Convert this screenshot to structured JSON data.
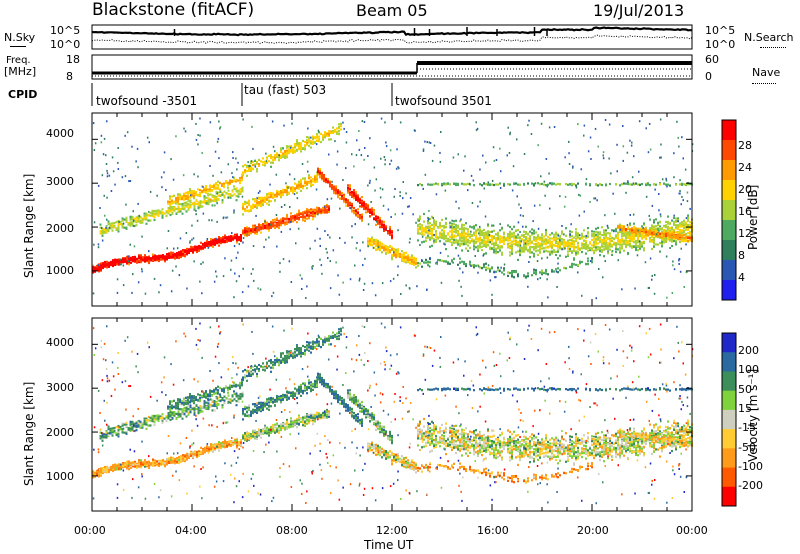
{
  "header": {
    "title": "Blackstone (fitACF)",
    "beam": "Beam 05",
    "date": "19/Jul/2013"
  },
  "panels": {
    "nsky_label": "N.Sky",
    "nsearch_label": "N.Search",
    "freq_label_1": "Freq.",
    "freq_label_2": "[MHz]",
    "nave_label": "Nave",
    "cpid_label": "CPID",
    "nsky_ticks": [
      "10^5",
      "10^0"
    ],
    "freq_ticks": [
      "18",
      "8"
    ],
    "nave_ticks": [
      "60",
      "0"
    ]
  },
  "cpid_segments": [
    {
      "label": "twofsound -3501",
      "start": 0,
      "end": 6
    },
    {
      "label": "tau (fast) 503",
      "start": 6,
      "end": 12
    },
    {
      "label": "twofsound 3501",
      "start": 12,
      "end": 24
    }
  ],
  "chart_data": [
    {
      "type": "heatmap",
      "quantity": "power",
      "ylabel": "Slant Range [km]",
      "xlabel": "Time UT",
      "xlim": [
        0,
        24
      ],
      "ylim": [
        200,
        4600
      ],
      "yticks": [
        "1000",
        "2000",
        "3000",
        "4000"
      ],
      "xticks": [
        "00:00",
        "04:00",
        "08:00",
        "12:00",
        "16:00",
        "20:00",
        "00:00"
      ],
      "colorbar": {
        "label": "Power [dB]",
        "ticks": [
          "28",
          "24",
          "20",
          "16",
          "12",
          "8",
          "4"
        ],
        "colors": [
          "#ff0000",
          "#ff4800",
          "#ff9a00",
          "#ffd100",
          "#aad238",
          "#4eaa60",
          "#2f7e5c",
          "#2a56b4",
          "#1f1ff0"
        ]
      }
    },
    {
      "type": "heatmap",
      "quantity": "velocity",
      "ylabel": "Slant Range [km]",
      "xlabel": "Time UT",
      "xlim": [
        0,
        24
      ],
      "ylim": [
        200,
        4600
      ],
      "yticks": [
        "1000",
        "2000",
        "3000",
        "4000"
      ],
      "xticks": [
        "00:00",
        "04:00",
        "08:00",
        "12:00",
        "16:00",
        "20:00",
        "00:00"
      ],
      "colorbar": {
        "label": "Velocity [m s⁻¹]",
        "ticks": [
          "200",
          "100",
          "50",
          "15",
          "-15",
          "-50",
          "-100",
          "-200"
        ],
        "colors": [
          "#1f28c8",
          "#2a6aa0",
          "#3c8e5a",
          "#7fd23c",
          "#cfcfc0",
          "#ffcc33",
          "#ff9b1a",
          "#ff5a00",
          "#ff0000"
        ]
      }
    }
  ]
}
